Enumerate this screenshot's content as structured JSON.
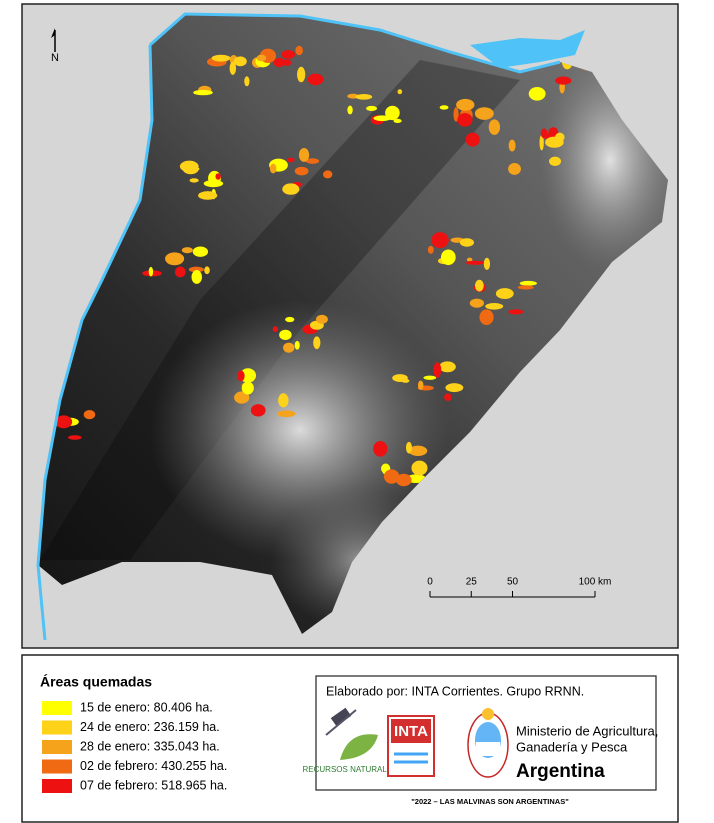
{
  "map": {
    "north_label": "N",
    "scale": {
      "ticks": [
        0,
        25,
        50,
        {
          "value": 100,
          "label": "100 km"
        }
      ]
    }
  },
  "legend": {
    "title": "Áreas quemadas",
    "items": [
      {
        "label": "15 de enero: 80.406 ha.",
        "color": "#ffff00"
      },
      {
        "label": "24 de enero: 236.159 ha.",
        "color": "#ffd21a"
      },
      {
        "label": "28 de enero: 335.043 ha.",
        "color": "#f5a31a"
      },
      {
        "label": "02 de febrero: 430.255 ha.",
        "color": "#ef6a12"
      },
      {
        "label": "07 de febrero: 518.965 ha.",
        "color": "#ee1111"
      }
    ]
  },
  "credits": {
    "author": "Elaborado por: INTA Corrientes. Grupo RRNN.",
    "logo_rrnn": "RECURSOS NATURALES",
    "logo_inta": "INTA",
    "ministry": [
      "Ministerio de Agricultura,",
      "Ganadería y Pesca"
    ],
    "country": "Argentina",
    "motto": "\"2022 – LAS MALVINAS SON ARGENTINAS\""
  }
}
